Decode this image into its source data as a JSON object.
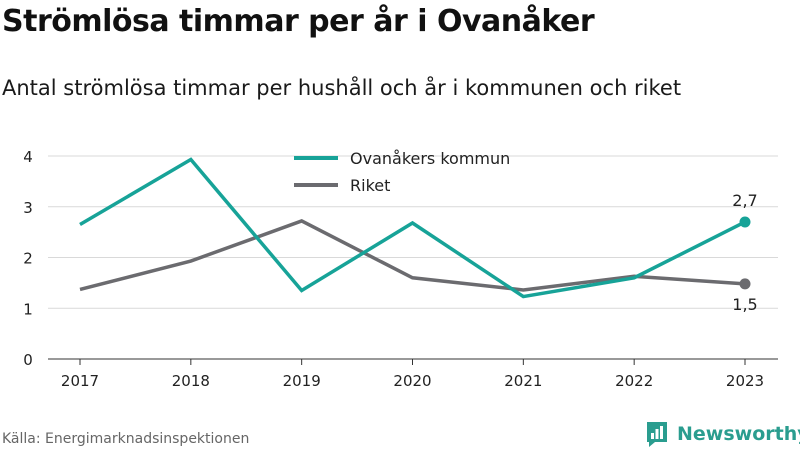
{
  "header": {
    "title": "Strömlösa timmar per år i Ovanåker",
    "subtitle": "Antal strömlösa timmar per hushåll och år i kommunen och riket"
  },
  "footer": {
    "source": "Källa: Energimarknadsinspektionen",
    "brand": "Newsworthy",
    "brand_icon": "newsworthy-logo-icon",
    "brand_color": "#2a9d8f"
  },
  "chart_data": {
    "type": "line",
    "categories": [
      "2017",
      "2018",
      "2019",
      "2020",
      "2021",
      "2022",
      "2023"
    ],
    "ylim": [
      0,
      4
    ],
    "yticks": [
      "0",
      "1",
      "2",
      "3",
      "4"
    ],
    "grid": true,
    "legend_position": "top-center",
    "series": [
      {
        "name": "Ovanåkers kommun",
        "color": "#17a398",
        "values": [
          2.65,
          3.93,
          1.35,
          2.68,
          1.23,
          1.6,
          2.7
        ],
        "end_label": "2,7"
      },
      {
        "name": "Riket",
        "color": "#6b6b6f",
        "values": [
          1.37,
          1.93,
          2.72,
          1.6,
          1.36,
          1.63,
          1.48
        ],
        "end_label": "1,5"
      }
    ]
  }
}
